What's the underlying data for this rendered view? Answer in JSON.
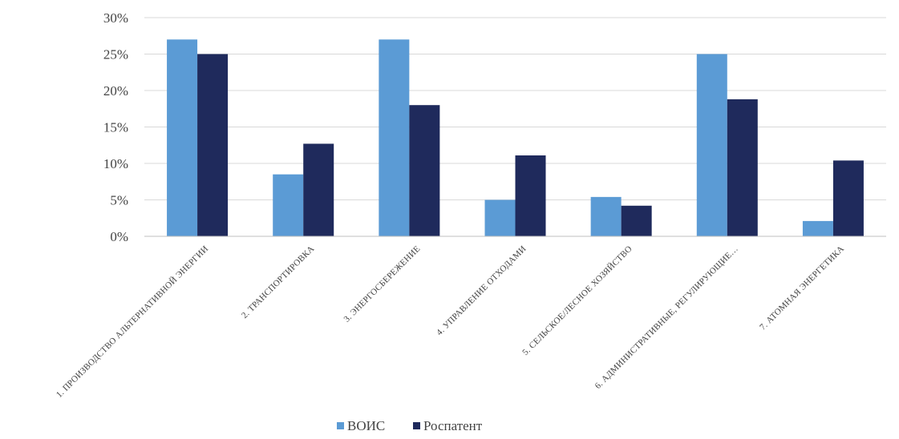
{
  "chart_data": {
    "type": "bar",
    "categories": [
      "1. ПРОИЗВОДСТВО АЛЬТЕРНАТИВНОЙ ЭНЕРГИИ",
      "2. ТРАНСПОРТИРОВКА",
      "3. ЭНЕРГОСБЕРЕЖЕНИЕ",
      "4. УПРАВЛЕНИЕ ОТХОДАМИ",
      "5. СЕЛЬСКОЕ/ЛЕСНОЕ ХОЗЯЙСТВО",
      "6. АДМИНИСТРАТИВНЫЕ, РЕГУЛИРУЮЩИЕ…",
      "7. АТОМНАЯ ЭНЕРГЕТИКА"
    ],
    "series": [
      {
        "name": "ВОИС",
        "color": "#5b9bd5",
        "values": [
          27,
          8.5,
          27,
          5,
          5.4,
          25,
          2.1
        ]
      },
      {
        "name": "Роспатент",
        "color": "#1f2a5c",
        "values": [
          25,
          12.7,
          18,
          11.1,
          4.2,
          18.8,
          10.4
        ]
      }
    ],
    "ylim": [
      0,
      30
    ],
    "yticks": [
      0,
      5,
      10,
      15,
      20,
      25,
      30
    ],
    "ytick_labels": [
      "0%",
      "5%",
      "10%",
      "15%",
      "20%",
      "25%",
      "30%"
    ],
    "grid": true,
    "legend_position": "bottom"
  }
}
